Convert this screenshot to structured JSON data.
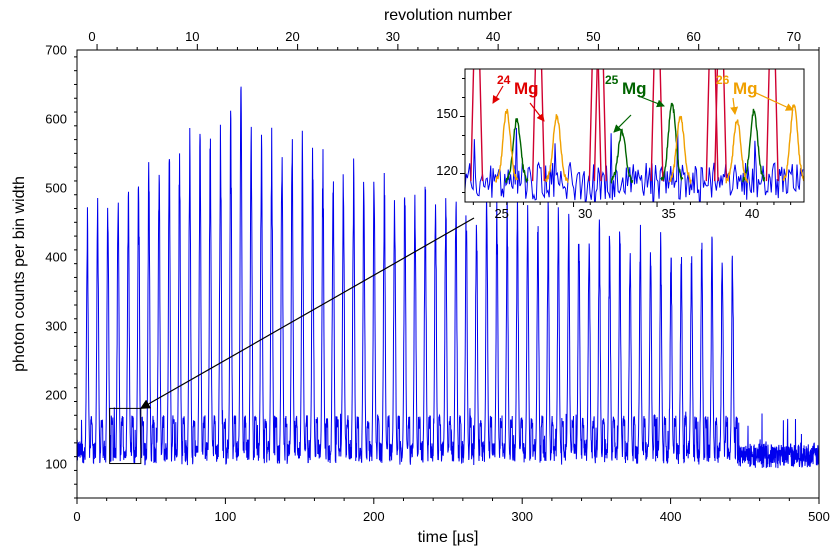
{
  "chart_data": {
    "type": "line",
    "main": {
      "xlabel": "time [µs]",
      "ylabel": "photon counts per bin width",
      "x2label": "revolution number",
      "xlim": [
        0,
        500
      ],
      "ylim": [
        50,
        700
      ],
      "x2lim": [
        -2,
        72
      ],
      "xticks": [
        "0",
        "100",
        "200",
        "300",
        "400",
        "500"
      ],
      "yticks": [
        "100",
        "200",
        "300",
        "400",
        "500",
        "600",
        "700"
      ],
      "x2ticks": [
        "0",
        "10",
        "20",
        "30",
        "40",
        "50",
        "60",
        "70"
      ],
      "line_color": "#0000ee",
      "baseline": 117,
      "baseline_after": 112,
      "noise_half_width": 20,
      "peak_period_us": 6.9,
      "first_peak_us": 7,
      "last_peak_us": 443,
      "peak_envelope": [
        {
          "t": 7,
          "y": 440
        },
        {
          "t": 60,
          "y": 530
        },
        {
          "t": 110,
          "y": 580
        },
        {
          "t": 135,
          "y": 560
        },
        {
          "t": 200,
          "y": 500
        },
        {
          "t": 270,
          "y": 470
        },
        {
          "t": 340,
          "y": 440
        },
        {
          "t": 400,
          "y": 410
        },
        {
          "t": 443,
          "y": 400
        }
      ],
      "max_peak": {
        "t": 111,
        "y": 650
      },
      "zoom_box": {
        "x": [
          22,
          43
        ],
        "y": [
          100,
          180
        ]
      }
    },
    "inset": {
      "xlim": [
        23.5,
        43.8
      ],
      "ylim": [
        105,
        175
      ],
      "xticks": [
        "25",
        "30",
        "35",
        "40"
      ],
      "yticks": [
        "120",
        "150"
      ],
      "line_color": "#0000ee",
      "labels": [
        {
          "mass": "24",
          "symbol": "Mg",
          "color": "#e00000"
        },
        {
          "mass": "25",
          "symbol": "Mg",
          "color": "#006400"
        },
        {
          "mass": "26",
          "symbol": "Mg",
          "color": "#f0a000"
        }
      ],
      "species_colors": {
        "mg24": "#d00030",
        "mg25": "#006400",
        "mg26": "#f0a000"
      },
      "mg24_peaks": [
        24.2,
        27.9,
        31.3,
        31.6,
        35.0,
        38.3,
        38.8,
        41.9
      ],
      "mg25_peaks": [
        26.6,
        32.9,
        35.9,
        40.8
      ],
      "mg25_heights": [
        148,
        142,
        157,
        153
      ],
      "mg26_peaks": [
        26.0,
        29.0,
        36.4,
        39.8,
        43.2
      ],
      "mg26_heights": [
        153,
        150,
        150,
        148,
        156
      ]
    }
  }
}
